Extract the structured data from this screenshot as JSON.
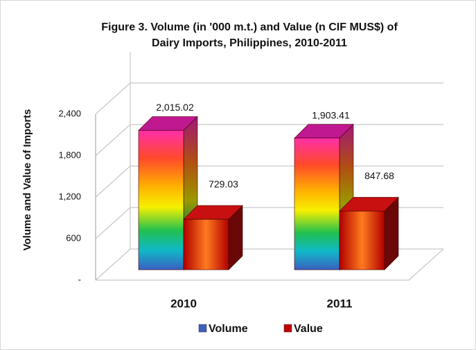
{
  "chart_data": {
    "type": "bar3d",
    "title": "Figure 3. Volume (in '000 m.t.) and Value (n CIF MUS$) of",
    "subtitle": "Dairy Imports, Philippines, 2010-2011",
    "y_label": "Volume and Value of Imports",
    "categories": [
      "2010",
      "2011"
    ],
    "series": [
      {
        "name": "Volume",
        "color": "#3f5fbf",
        "values": [
          2015.02,
          1903.41
        ],
        "value_labels": [
          "2,015.02",
          "1,903.41"
        ]
      },
      {
        "name": "Value",
        "color": "#c00000",
        "values": [
          729.03,
          847.68
        ],
        "value_labels": [
          "729.03",
          "847.68"
        ]
      }
    ],
    "ylim": [
      0,
      2400
    ],
    "yticks": [
      {
        "value": 0,
        "label": "-"
      },
      600,
      {
        "value": 1200,
        "label": "1,200"
      },
      {
        "value": 1800,
        "label": "1,800"
      },
      {
        "value": 2400,
        "label": "2,400"
      }
    ],
    "grid": true,
    "legend": "bottom"
  }
}
